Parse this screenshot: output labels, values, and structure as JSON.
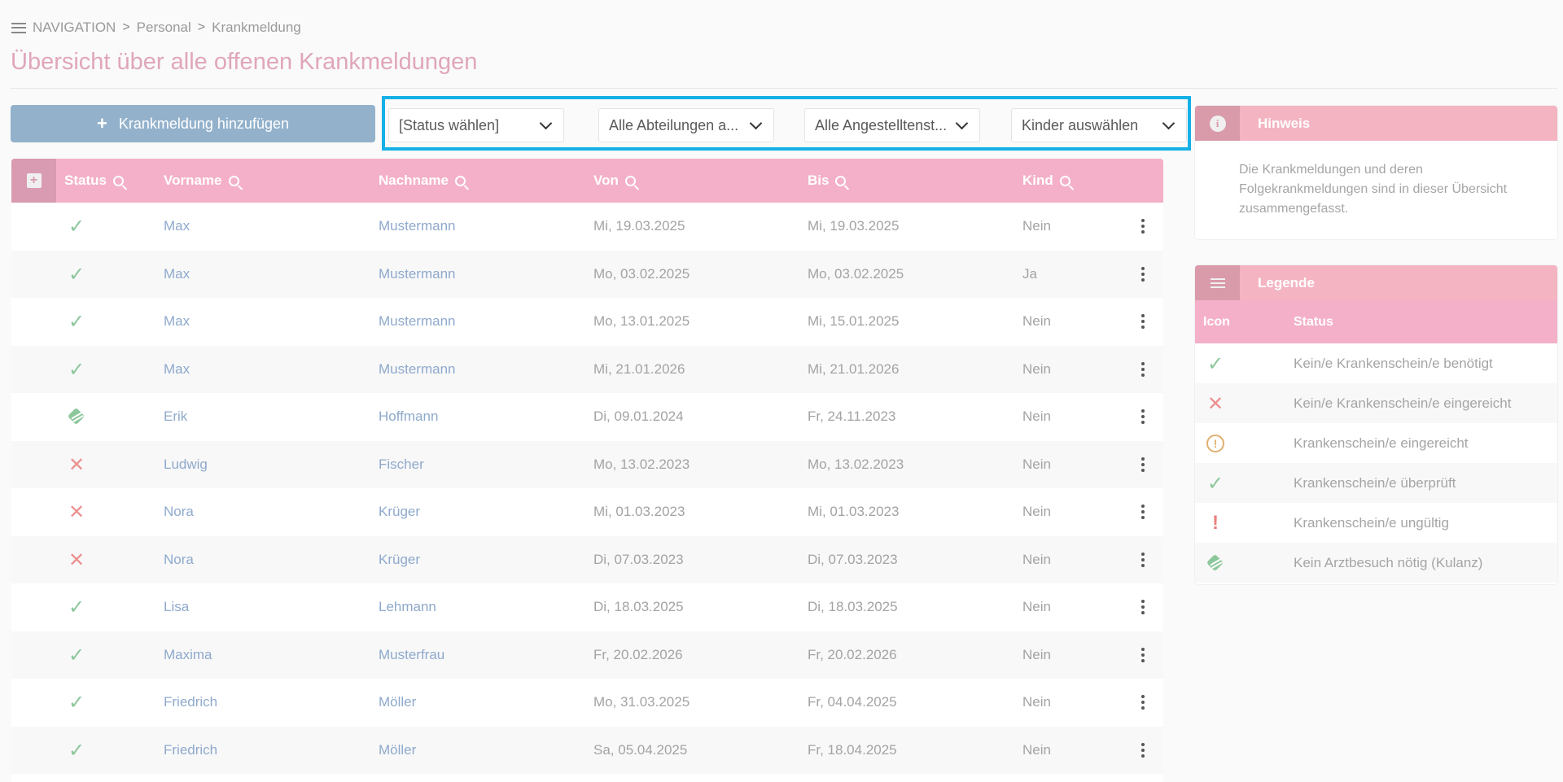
{
  "breadcrumb": {
    "nav": "NAVIGATION",
    "level1": "Personal",
    "level2": "Krankmeldung",
    "separator": ">"
  },
  "page_title": "Übersicht über alle offenen Krankmeldungen",
  "add_button": {
    "plus": "+",
    "label": "Krankmeldung hinzufügen"
  },
  "filters": [
    {
      "value": "[Status wählen]"
    },
    {
      "value": "Alle Abteilungen a..."
    },
    {
      "value": "Alle Angestelltenst..."
    },
    {
      "value": "Kinder auswählen"
    }
  ],
  "table": {
    "expand_glyph": "+",
    "headers": {
      "status": "Status",
      "vorname": "Vorname",
      "nachname": "Nachname",
      "von": "Von",
      "bis": "Bis",
      "kind": "Kind"
    },
    "rows": [
      {
        "status": "check",
        "vorname": "Max",
        "nachname": "Mustermann",
        "von": "Mi, 19.03.2025",
        "bis": "Mi, 19.03.2025",
        "kind": "Nein"
      },
      {
        "status": "check",
        "vorname": "Max",
        "nachname": "Mustermann",
        "von": "Mo, 03.02.2025",
        "bis": "Mo, 03.02.2025",
        "kind": "Ja"
      },
      {
        "status": "check",
        "vorname": "Max",
        "nachname": "Mustermann",
        "von": "Mo, 13.01.2025",
        "bis": "Mi, 15.01.2025",
        "kind": "Nein"
      },
      {
        "status": "check",
        "vorname": "Max",
        "nachname": "Mustermann",
        "von": "Mi, 21.01.2026",
        "bis": "Mi, 21.01.2026",
        "kind": "Nein"
      },
      {
        "status": "handshake",
        "vorname": "Erik",
        "nachname": "Hoffmann",
        "von": "Di, 09.01.2024",
        "bis": "Fr, 24.11.2023",
        "kind": "Nein"
      },
      {
        "status": "x",
        "vorname": "Ludwig",
        "nachname": "Fischer",
        "von": "Mo, 13.02.2023",
        "bis": "Mo, 13.02.2023",
        "kind": "Nein"
      },
      {
        "status": "x",
        "vorname": "Nora",
        "nachname": "Krüger",
        "von": "Mi, 01.03.2023",
        "bis": "Mi, 01.03.2023",
        "kind": "Nein"
      },
      {
        "status": "x",
        "vorname": "Nora",
        "nachname": "Krüger",
        "von": "Di, 07.03.2023",
        "bis": "Di, 07.03.2023",
        "kind": "Nein"
      },
      {
        "status": "check",
        "vorname": "Lisa",
        "nachname": "Lehmann",
        "von": "Di, 18.03.2025",
        "bis": "Di, 18.03.2025",
        "kind": "Nein"
      },
      {
        "status": "check",
        "vorname": "Maxima",
        "nachname": "Musterfrau",
        "von": "Fr, 20.02.2026",
        "bis": "Fr, 20.02.2026",
        "kind": "Nein"
      },
      {
        "status": "check",
        "vorname": "Friedrich",
        "nachname": "Möller",
        "von": "Mo, 31.03.2025",
        "bis": "Fr, 04.04.2025",
        "kind": "Nein"
      },
      {
        "status": "check",
        "vorname": "Friedrich",
        "nachname": "Möller",
        "von": "Sa, 05.04.2025",
        "bis": "Fr, 18.04.2025",
        "kind": "Nein"
      }
    ]
  },
  "hint_panel": {
    "icon_glyph": "i",
    "title": "Hinweis",
    "text": "Die Krankmeldungen und deren Folgekrankmeldungen sind in dieser Übersicht zusammengefasst."
  },
  "legend_panel": {
    "title": "Legende",
    "col_icon": "Icon",
    "col_status": "Status",
    "rows": [
      {
        "icon": "check",
        "label": "Kein/e Krankenschein/e benötigt"
      },
      {
        "icon": "x",
        "label": "Kein/e Krankenschein/e eingereicht"
      },
      {
        "icon": "warn",
        "label": "Krankenschein/e eingereicht"
      },
      {
        "icon": "check",
        "label": "Krankenschein/e überprüft"
      },
      {
        "icon": "excl",
        "label": "Krankenschein/e ungültig"
      },
      {
        "icon": "handshake",
        "label": "Kein Arztbesuch nötig (Kulanz)"
      }
    ]
  },
  "glyphs": {
    "check": "✓",
    "x": "✕",
    "warn": "!",
    "excl": "!"
  },
  "colors": {
    "title": "#e0a6bb",
    "header": "#f4b0c8",
    "link": "#8ea9cc",
    "ok": "#8cc79b",
    "bad": "#ec9190",
    "highlight": "#14b0e6",
    "button": "#93b1cb"
  }
}
